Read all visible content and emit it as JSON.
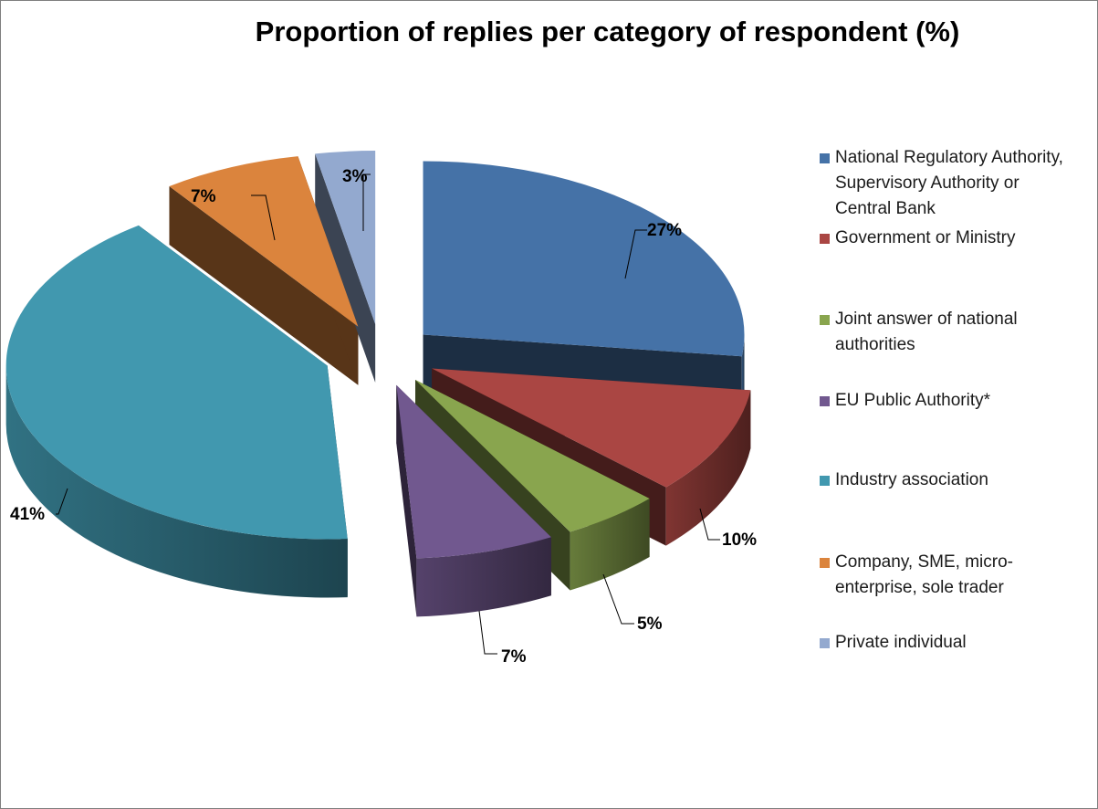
{
  "chart_data": {
    "type": "pie",
    "title": "Proportion of replies per category of respondent (%)",
    "legend_position": "right",
    "three_d": true,
    "exploded": true,
    "slices": [
      {
        "name": "National Regulatory Authority, Supervisory Authority or Central Bank",
        "value": 27,
        "label": "27%",
        "color": "#4572A7"
      },
      {
        "name": "Government or Ministry",
        "value": 10,
        "label": "10%",
        "color": "#AA4643"
      },
      {
        "name": "Joint answer of national authorities",
        "value": 5,
        "label": "5%",
        "color": "#89A54E"
      },
      {
        "name": "EU Public Authority*",
        "value": 7,
        "label": "7%",
        "color": "#71588F"
      },
      {
        "name": "Industry association",
        "value": 41,
        "label": "41%",
        "color": "#4198AF"
      },
      {
        "name": "Company, SME, micro-enterprise, sole trader",
        "value": 7,
        "label": "7%",
        "color": "#DB843D"
      },
      {
        "name": "Private individual",
        "value": 3,
        "label": "3%",
        "color": "#93A9CF"
      }
    ]
  }
}
